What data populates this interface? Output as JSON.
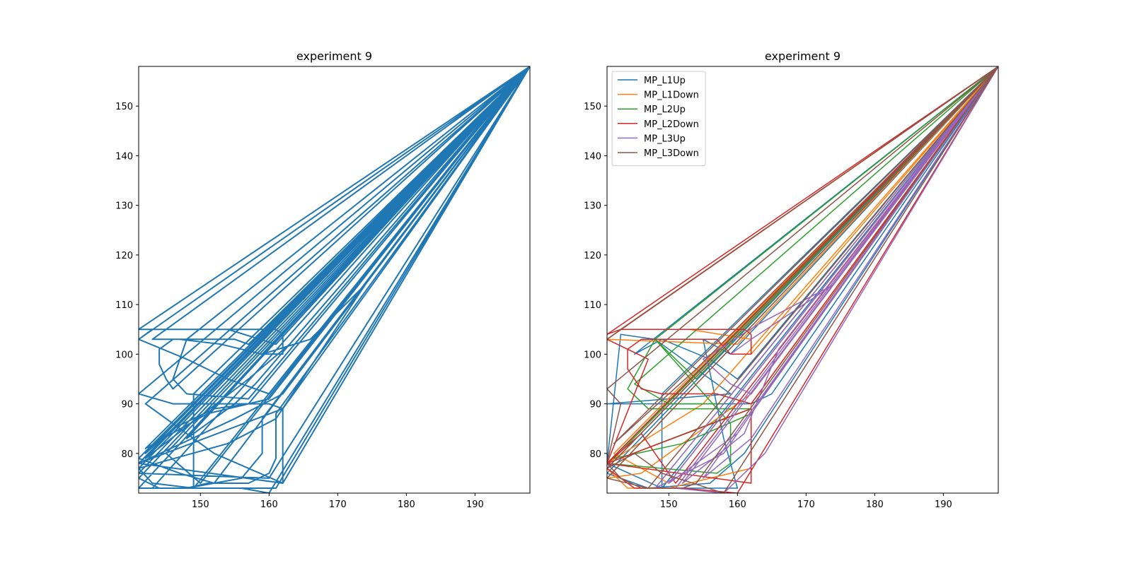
{
  "chart_data": [
    {
      "type": "line",
      "title": "experiment 9",
      "xlabel": "",
      "ylabel": "",
      "xlim": [
        141,
        198
      ],
      "ylim": [
        72,
        158
      ],
      "xticks": [
        150,
        160,
        170,
        180,
        190
      ],
      "yticks": [
        80,
        90,
        100,
        110,
        120,
        130,
        140,
        150
      ],
      "grid": false,
      "legend": null,
      "series": [
        {
          "color": "#1f77b4",
          "points": [
            [
              141,
              78
            ],
            [
              162,
              74
            ],
            [
              162,
              89
            ],
            [
              141,
              78
            ],
            [
              198,
              158
            ],
            [
              141,
              103
            ],
            [
              143,
              105
            ],
            [
              161,
              105
            ],
            [
              162,
              104
            ],
            [
              162,
              100
            ],
            [
              159,
              100
            ],
            [
              198,
              158
            ],
            [
              141,
              92
            ],
            [
              146,
              90
            ],
            [
              160,
              90
            ],
            [
              162,
              89
            ],
            [
              198,
              158
            ],
            [
              141,
              77
            ],
            [
              143,
              74
            ],
            [
              149,
              73
            ],
            [
              156,
              73
            ],
            [
              160,
              72
            ],
            [
              198,
              158
            ],
            [
              146,
              93
            ],
            [
              145,
              95
            ],
            [
              144,
              98
            ],
            [
              144,
              101
            ],
            [
              146,
              103
            ],
            [
              149,
              103
            ],
            [
              155,
              103
            ],
            [
              157,
              102
            ],
            [
              198,
              158
            ],
            [
              141,
              75
            ],
            [
              144,
              73
            ],
            [
              148,
              73
            ],
            [
              151,
              74
            ],
            [
              157,
              74
            ],
            [
              160,
              76
            ],
            [
              161,
              79
            ],
            [
              161,
              88
            ],
            [
              198,
              158
            ],
            [
              149,
              92
            ],
            [
              149,
              73
            ],
            [
              198,
              158
            ],
            [
              141,
              103
            ],
            [
              148,
              99
            ],
            [
              154,
              95
            ],
            [
              160,
              92
            ],
            [
              198,
              158
            ],
            [
              148,
              103
            ],
            [
              147,
              99
            ],
            [
              146,
              95
            ],
            [
              148,
              92
            ],
            [
              157,
              91
            ],
            [
              198,
              158
            ],
            [
              142,
              90
            ],
            [
              152,
              80
            ],
            [
              162,
              74
            ],
            [
              198,
              158
            ],
            [
              141,
              78
            ],
            [
              155,
              87
            ],
            [
              162,
              92
            ],
            [
              198,
              158
            ],
            [
              145,
              80
            ],
            [
              150,
              74
            ],
            [
              198,
              158
            ],
            [
              141,
              79
            ],
            [
              147,
              76
            ],
            [
              152,
              74
            ],
            [
              198,
              158
            ],
            [
              141,
              77
            ],
            [
              154,
              82
            ],
            [
              161,
              87
            ],
            [
              174,
              114
            ],
            [
              166,
              103
            ],
            [
              159,
              100
            ],
            [
              153,
              102
            ],
            [
              147,
              103
            ],
            [
              143,
              103
            ],
            [
              198,
              158
            ],
            [
              142,
              79
            ],
            [
              157,
              95
            ],
            [
              163,
              102
            ],
            [
              198,
              158
            ],
            [
              141,
              73
            ],
            [
              148,
              73
            ],
            [
              156,
              75
            ],
            [
              159,
              80
            ],
            [
              159,
              87
            ],
            [
              198,
              158
            ],
            [
              142,
              80
            ],
            [
              146,
              85
            ],
            [
              152,
              89
            ],
            [
              157,
              90
            ],
            [
              198,
              158
            ],
            [
              141,
              105
            ],
            [
              154,
              105
            ],
            [
              161,
              102
            ],
            [
              198,
              158
            ],
            [
              148,
              83
            ],
            [
              155,
              90
            ],
            [
              158,
              94
            ],
            [
              198,
              158
            ],
            [
              141,
              76
            ],
            [
              160,
              75
            ],
            [
              198,
              158
            ],
            [
              143,
              73
            ],
            [
              151,
              73
            ],
            [
              161,
              73
            ],
            [
              198,
              158
            ],
            [
              142,
              81
            ],
            [
              151,
              88
            ],
            [
              160,
              91
            ],
            [
              198,
              158
            ]
          ]
        }
      ]
    },
    {
      "type": "line",
      "title": "experiment 9",
      "xlabel": "",
      "ylabel": "",
      "xlim": [
        141,
        198
      ],
      "ylim": [
        72,
        158
      ],
      "xticks": [
        150,
        160,
        170,
        180,
        190
      ],
      "yticks": [
        80,
        90,
        100,
        110,
        120,
        130,
        140,
        150
      ],
      "grid": false,
      "legend": "top-left",
      "series": [
        {
          "name": "MP_L1Up",
          "color": "#1f77b4",
          "points": [
            [
              141,
              78
            ],
            [
              143,
              104
            ],
            [
              148,
              103
            ],
            [
              159,
              92
            ],
            [
              141,
              90
            ],
            [
              162,
              90
            ],
            [
              165,
              92
            ],
            [
              198,
              158
            ],
            [
              141,
              78
            ],
            [
              149,
              73
            ],
            [
              160,
              73
            ],
            [
              158,
              83
            ],
            [
              155,
              103
            ],
            [
              159,
              100
            ],
            [
              198,
              158
            ],
            [
              149,
              92
            ],
            [
              149,
              73
            ],
            [
              198,
              158
            ],
            [
              141,
              76
            ],
            [
              147,
              73
            ],
            [
              156,
              74
            ],
            [
              161,
              80
            ],
            [
              198,
              158
            ],
            [
              145,
              100
            ],
            [
              149,
              103
            ],
            [
              156,
              99
            ],
            [
              160,
              95
            ],
            [
              198,
              158
            ]
          ]
        },
        {
          "name": "MP_L1Down",
          "color": "#ff7f0e",
          "points": [
            [
              141,
              77
            ],
            [
              144,
              73
            ],
            [
              150,
              73
            ],
            [
              162,
              77
            ],
            [
              162,
              90
            ],
            [
              198,
              158
            ],
            [
              143,
              105
            ],
            [
              153,
              105
            ],
            [
              162,
              103
            ],
            [
              162,
              100
            ],
            [
              198,
              158
            ],
            [
              141,
              75
            ],
            [
              146,
              76
            ],
            [
              162,
              92
            ],
            [
              198,
              158
            ],
            [
              141,
              103
            ],
            [
              160,
              102
            ],
            [
              198,
              158
            ],
            [
              142,
              80
            ],
            [
              150,
              74
            ],
            [
              198,
              158
            ],
            [
              141,
              78
            ],
            [
              155,
              90
            ],
            [
              198,
              158
            ]
          ]
        },
        {
          "name": "MP_L2Up",
          "color": "#2ca02c",
          "points": [
            [
              141,
              78
            ],
            [
              158,
              87
            ],
            [
              162,
              89
            ],
            [
              147,
              89
            ],
            [
              144,
              93
            ],
            [
              148,
              103
            ],
            [
              159,
              86
            ],
            [
              159,
              78
            ],
            [
              157,
              76
            ],
            [
              141,
              78
            ],
            [
              198,
              158
            ],
            [
              142,
              79
            ],
            [
              152,
              82
            ],
            [
              162,
              88
            ],
            [
              198,
              158
            ],
            [
              145,
              94
            ],
            [
              150,
              90
            ],
            [
              158,
              90
            ],
            [
              198,
              158
            ],
            [
              148,
              103
            ],
            [
              154,
              95
            ],
            [
              198,
              158
            ]
          ]
        },
        {
          "name": "MP_L2Down",
          "color": "#d62728",
          "points": [
            [
              141,
              78
            ],
            [
              162,
              74
            ],
            [
              162,
              89
            ],
            [
              141,
              78
            ],
            [
              198,
              158
            ],
            [
              141,
              104
            ],
            [
              143,
              105
            ],
            [
              154,
              105
            ],
            [
              161,
              105
            ],
            [
              162,
              104
            ],
            [
              162,
              100
            ],
            [
              159,
              100
            ],
            [
              157,
              103
            ],
            [
              146,
              103
            ],
            [
              144,
              101
            ],
            [
              144,
              97
            ],
            [
              146,
              93
            ],
            [
              149,
              92
            ],
            [
              157,
              92
            ],
            [
              162,
              90
            ],
            [
              198,
              158
            ],
            [
              141,
              103
            ],
            [
              147,
              99
            ],
            [
              141,
              78
            ],
            [
              146,
              84
            ],
            [
              151,
              74
            ],
            [
              198,
              158
            ],
            [
              141,
              77
            ],
            [
              145,
              73
            ],
            [
              152,
              73
            ],
            [
              160,
              72
            ],
            [
              198,
              158
            ]
          ]
        },
        {
          "name": "MP_L3Up",
          "color": "#9467bd",
          "points": [
            [
              159,
              100
            ],
            [
              162,
              103
            ],
            [
              174,
              114
            ],
            [
              163,
              106
            ],
            [
              155,
              99
            ],
            [
              159,
              94
            ],
            [
              162,
              92
            ],
            [
              198,
              158
            ],
            [
              148,
              73
            ],
            [
              158,
              80
            ],
            [
              162,
              88
            ],
            [
              198,
              158
            ],
            [
              150,
              74
            ],
            [
              160,
              84
            ],
            [
              167,
              98
            ],
            [
              198,
              158
            ],
            [
              151,
              73
            ],
            [
              158,
              72
            ],
            [
              164,
              80
            ],
            [
              198,
              158
            ],
            [
              155,
              75
            ],
            [
              162,
              83
            ],
            [
              198,
              158
            ],
            [
              152,
              74
            ],
            [
              161,
              84
            ],
            [
              166,
              101
            ],
            [
              198,
              158
            ]
          ]
        },
        {
          "name": "MP_L3Down",
          "color": "#8c564b",
          "points": [
            [
              141,
              103
            ],
            [
              143,
              105
            ],
            [
              198,
              158
            ],
            [
              141,
              93
            ],
            [
              143,
              90
            ],
            [
              141,
              78
            ],
            [
              143,
              75
            ],
            [
              146,
              73
            ],
            [
              152,
              73
            ],
            [
              154,
              74
            ],
            [
              198,
              158
            ],
            [
              141,
              77
            ],
            [
              145,
              80
            ],
            [
              149,
              76
            ],
            [
              158,
              72
            ],
            [
              198,
              158
            ],
            [
              142,
              82
            ],
            [
              154,
              97
            ],
            [
              198,
              158
            ],
            [
              141,
              75
            ],
            [
              147,
              73
            ],
            [
              198,
              158
            ]
          ]
        }
      ]
    }
  ]
}
